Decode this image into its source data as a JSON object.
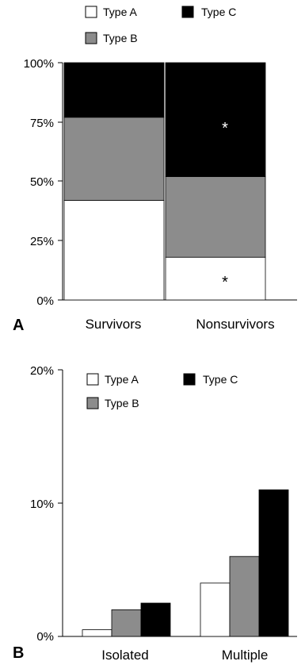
{
  "colors": {
    "type_a": "#ffffff",
    "type_b": "#8c8c8c",
    "type_c": "#000000"
  },
  "chart_data": [
    {
      "type": "bar",
      "stacked": true,
      "panel_label": "A",
      "categories": [
        "Survivors",
        "Nonsurvivors"
      ],
      "series": [
        {
          "name": "Type A",
          "values": [
            42,
            18
          ]
        },
        {
          "name": "Type B",
          "values": [
            35,
            34
          ]
        },
        {
          "name": "Type C",
          "values": [
            23,
            48
          ]
        }
      ],
      "ylim": [
        0,
        100
      ],
      "yticks": [
        "0%",
        "25%",
        "50%",
        "75%",
        "100%"
      ],
      "annotations": [
        "*",
        "*"
      ],
      "legend": [
        "Type A",
        "Type C",
        "Type B"
      ],
      "legend_position": "top"
    },
    {
      "type": "bar",
      "stacked": false,
      "panel_label": "B",
      "categories": [
        "Isolated",
        "Multiple"
      ],
      "series": [
        {
          "name": "Type A",
          "values": [
            0.5,
            4
          ]
        },
        {
          "name": "Type B",
          "values": [
            2,
            6
          ]
        },
        {
          "name": "Type C",
          "values": [
            2.5,
            11
          ]
        }
      ],
      "ylim": [
        0,
        20
      ],
      "yticks": [
        "0%",
        "10%",
        "20%"
      ],
      "legend": [
        "Type A",
        "Type C",
        "Type B"
      ],
      "legend_position": "top"
    }
  ]
}
